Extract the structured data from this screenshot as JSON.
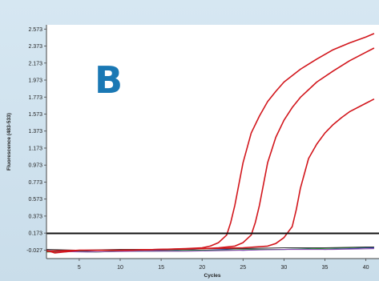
{
  "panel_label": "B",
  "colors": {
    "panel_letter": "#1a78b4",
    "amplification": "#d2161c",
    "threshold": "#111111",
    "baseline_blue": "#2c3ea8",
    "baseline_green": "#2b9a3c",
    "baseline_dark": "#333333",
    "baseline_purple": "#8a4cb0"
  },
  "chart_data": {
    "type": "line",
    "xlabel": "Cycles",
    "ylabel": "Fluorescence (483-533)",
    "xlim": [
      1,
      41
    ],
    "ylim": [
      -0.127,
      2.623
    ],
    "x_ticks": [
      5,
      10,
      15,
      20,
      25,
      30,
      35,
      40
    ],
    "y_ticks": [
      -0.027,
      0.173,
      0.373,
      0.573,
      0.773,
      0.973,
      1.173,
      1.373,
      1.573,
      1.773,
      1.973,
      2.173,
      2.373,
      2.573
    ],
    "y_tick_labels": [
      "-0.027",
      "0.173",
      "0.373",
      "0.573",
      "0.773",
      "0.973",
      "1.173",
      "1.373",
      "1.573",
      "1.773",
      "1.973",
      "2.173",
      "2.373",
      "2.573"
    ],
    "threshold": 0.17,
    "series": [
      {
        "color": "#d2161c",
        "x": [
          1,
          2,
          5,
          10,
          15,
          18,
          20,
          21,
          22,
          23,
          23.5,
          24,
          25,
          26,
          27,
          28,
          29,
          30,
          32,
          34,
          36,
          38,
          40,
          41
        ],
        "y": [
          -0.03,
          -0.06,
          -0.03,
          -0.03,
          -0.02,
          -0.01,
          0.0,
          0.02,
          0.06,
          0.15,
          0.3,
          0.5,
          1.0,
          1.35,
          1.55,
          1.72,
          1.84,
          1.95,
          2.1,
          2.22,
          2.33,
          2.41,
          2.48,
          2.52
        ]
      },
      {
        "color": "#d2161c",
        "x": [
          1,
          5,
          10,
          15,
          20,
          22,
          24,
          25,
          26,
          26.5,
          27,
          28,
          29,
          30,
          31,
          32,
          34,
          36,
          38,
          40,
          41
        ],
        "y": [
          -0.04,
          -0.03,
          -0.03,
          -0.02,
          -0.01,
          0.0,
          0.02,
          0.06,
          0.15,
          0.3,
          0.5,
          1.0,
          1.3,
          1.5,
          1.65,
          1.77,
          1.95,
          2.08,
          2.2,
          2.3,
          2.35
        ]
      },
      {
        "color": "#d2161c",
        "x": [
          1,
          5,
          10,
          15,
          20,
          25,
          28,
          29,
          30,
          31,
          31.5,
          32,
          33,
          34,
          35,
          36,
          37,
          38,
          40,
          41
        ],
        "y": [
          -0.04,
          -0.03,
          -0.03,
          -0.02,
          -0.01,
          0.0,
          0.02,
          0.05,
          0.12,
          0.25,
          0.45,
          0.7,
          1.05,
          1.22,
          1.35,
          1.45,
          1.53,
          1.6,
          1.7,
          1.75
        ]
      },
      {
        "color": "#2c3ea8",
        "x": [
          1,
          3,
          5,
          8,
          10,
          13,
          15,
          18,
          20,
          23,
          25,
          28,
          30,
          33,
          35,
          38,
          40,
          41
        ],
        "y": [
          -0.03,
          -0.05,
          -0.04,
          -0.03,
          -0.04,
          -0.03,
          -0.03,
          -0.02,
          -0.03,
          -0.02,
          -0.03,
          -0.02,
          -0.02,
          -0.01,
          -0.02,
          -0.01,
          0.0,
          0.0
        ]
      },
      {
        "color": "#2b9a3c",
        "x": [
          1,
          4,
          7,
          10,
          14,
          18,
          22,
          26,
          30,
          34,
          38,
          41
        ],
        "y": [
          -0.05,
          -0.04,
          -0.05,
          -0.04,
          -0.04,
          -0.03,
          -0.03,
          -0.02,
          -0.02,
          -0.01,
          0.0,
          0.01
        ]
      },
      {
        "color": "#333333",
        "x": [
          1,
          5,
          10,
          15,
          20,
          25,
          30,
          35,
          40,
          41
        ],
        "y": [
          -0.02,
          -0.03,
          -0.02,
          -0.02,
          -0.01,
          -0.01,
          0.0,
          0.0,
          0.01,
          0.01
        ]
      },
      {
        "color": "#8a4cb0",
        "x": [
          1,
          6,
          12,
          18,
          24,
          30,
          36,
          41
        ],
        "y": [
          -0.04,
          -0.05,
          -0.04,
          -0.04,
          -0.03,
          -0.02,
          -0.02,
          -0.01
        ]
      }
    ]
  }
}
